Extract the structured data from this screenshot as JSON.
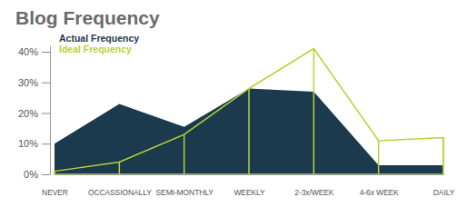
{
  "chart_data": {
    "type": "area",
    "title": "Blog Frequency",
    "categories": [
      "NEVER",
      "OCCASSIONALLY",
      "SEMI-MONTHLY",
      "WEEKLY",
      "2-3x/WEEK",
      "4-6x WEEK",
      "DAILY"
    ],
    "series": [
      {
        "name": "Actual Frequency",
        "type": "area",
        "color": "#1b3a4e",
        "values": [
          10,
          23,
          15.5,
          28,
          27,
          3,
          3
        ]
      },
      {
        "name": "Ideal Frequency",
        "type": "line",
        "color": "#b6d334",
        "values": [
          1,
          4,
          13,
          28,
          41,
          11,
          12
        ]
      }
    ],
    "ylim": [
      0,
      42
    ],
    "yticks": [
      {
        "value": 0,
        "label": "0%"
      },
      {
        "value": 10,
        "label": "10%"
      },
      {
        "value": 20,
        "label": "20%"
      },
      {
        "value": 30,
        "label": "30%"
      },
      {
        "value": 40,
        "label": "40%"
      }
    ],
    "grid": false,
    "legend": "top-left"
  }
}
